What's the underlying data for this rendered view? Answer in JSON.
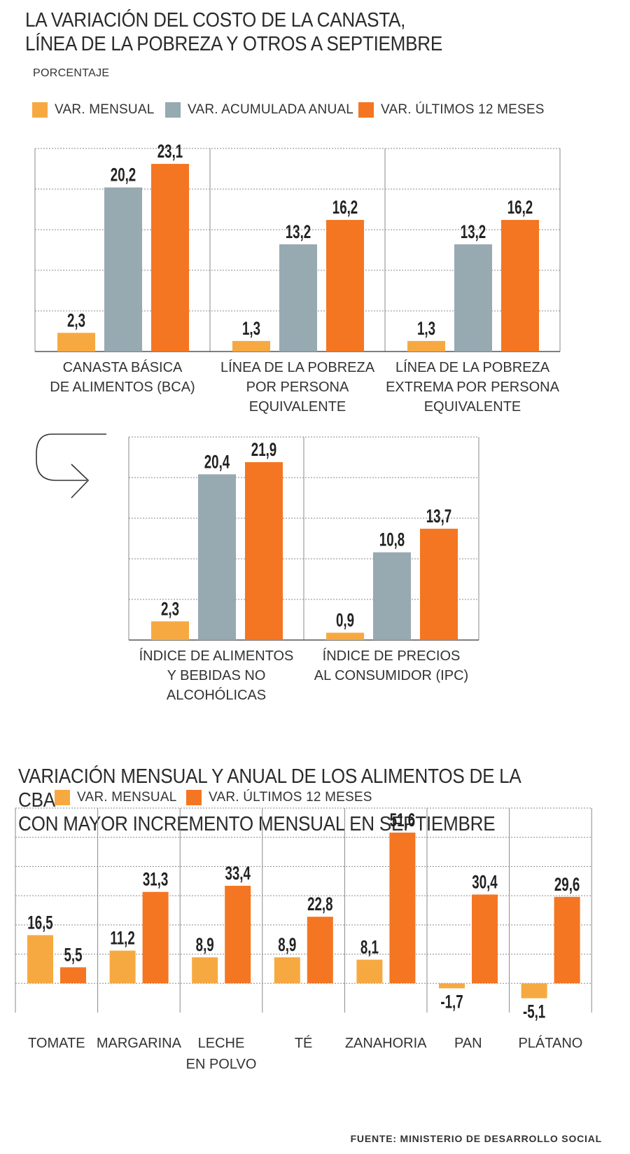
{
  "title": "LA VARIACIÓN DEL COSTO DE LA CANASTA,\nLÍNEA DE LA POBREZA Y OTROS A SEPTIEMBRE",
  "subtitle": "PORCENTAJE",
  "colors": {
    "var_mensual": "#f7a941",
    "var_acumulada_anual": "#97a9b1",
    "var_ultimos_12_meses": "#f47622",
    "grid": "#8a8a8a",
    "value_label": "#222222"
  },
  "legend": {
    "var_mensual": "VAR. MENSUAL",
    "var_acumulada_anual": "VAR. ACUMULADA ANUAL",
    "var_ultimos_12_meses": "VAR. ÚLTIMOS 12 MESES"
  },
  "source": "FUENTE: MINISTERIO DE DESARROLLO SOCIAL",
  "chart_data": [
    {
      "type": "bar",
      "title": "LA VARIACIÓN DEL COSTO DE LA CANASTA, LÍNEA DE LA POBREZA Y OTROS A SEPTIEMBRE",
      "ylabel": "PORCENTAJE",
      "categories": [
        "CANASTA BÁSICA\nDE ALIMENTOS (BCA)",
        "LÍNEA DE LA POBREZA\nPOR PERSONA\nEQUIVALENTE",
        "LÍNEA DE LA POBREZA\nEXTREMA POR PERSONA\nEQUIVALENTE"
      ],
      "series": [
        {
          "name": "VAR. MENSUAL",
          "values": [
            2.3,
            1.3,
            1.3
          ],
          "labels": [
            "2,3",
            "1,3",
            "1,3"
          ]
        },
        {
          "name": "VAR. ACUMULADA ANUAL",
          "values": [
            20.2,
            13.2,
            13.2
          ],
          "labels": [
            "20,2",
            "13,2",
            "13,2"
          ]
        },
        {
          "name": "VAR. ÚLTIMOS 12 MESES",
          "values": [
            23.1,
            16.2,
            16.2
          ],
          "labels": [
            "23,1",
            "16,2",
            "16,2"
          ]
        }
      ],
      "ylim": [
        0,
        25
      ],
      "grid": true
    },
    {
      "type": "bar",
      "categories": [
        "ÍNDICE DE ALIMENTOS\nY BEBIDAS NO\nALCOHÓLICAS",
        "ÍNDICE DE PRECIOS\nAL CONSUMIDOR (IPC)"
      ],
      "series": [
        {
          "name": "VAR. MENSUAL",
          "values": [
            2.3,
            0.9
          ],
          "labels": [
            "2,3",
            "0,9"
          ]
        },
        {
          "name": "VAR. ACUMULADA ANUAL",
          "values": [
            20.4,
            10.8
          ],
          "labels": [
            "20,4",
            "10,8"
          ]
        },
        {
          "name": "VAR. ÚLTIMOS 12 MESES",
          "values": [
            21.9,
            13.7
          ],
          "labels": [
            "21,9",
            "13,7"
          ]
        }
      ],
      "ylim": [
        0,
        25
      ],
      "grid": true
    },
    {
      "type": "bar",
      "title": "VARIACIÓN MENSUAL Y ANUAL DE LOS ALIMENTOS DE LA CBA CON MAYOR INCREMENTO MENSUAL EN SEPTIEMBRE",
      "categories": [
        "TOMATE",
        "MARGARINA",
        "LECHE\nEN POLVO",
        "TÉ",
        "ZANAHORIA",
        "PAN",
        "PLÁTANO"
      ],
      "series": [
        {
          "name": "VAR. MENSUAL",
          "values": [
            16.5,
            11.2,
            8.9,
            8.9,
            8.1,
            -1.7,
            -5.1
          ],
          "labels": [
            "16,5",
            "11,2",
            "8,9",
            "8,9",
            "8,1",
            "-1,7",
            "-5,1"
          ]
        },
        {
          "name": "VAR. ÚLTIMOS 12 MESES",
          "values": [
            5.5,
            31.3,
            33.4,
            22.8,
            51.6,
            30.4,
            29.6
          ],
          "labels": [
            "5,5",
            "31,3",
            "33,4",
            "22,8",
            "51,6",
            "30,4",
            "29,6"
          ]
        }
      ],
      "ylim": [
        -10,
        60
      ],
      "grid": true
    }
  ],
  "chart3_title": "VARIACIÓN MENSUAL Y ANUAL DE LOS ALIMENTOS DE LA CBA\nCON MAYOR INCREMENTO MENSUAL EN SEPTIEMBRE",
  "legend3": {
    "var_mensual": "VAR. MENSUAL",
    "var_ultimos_12_meses": "VAR. ÚLTIMOS 12 MESES"
  }
}
